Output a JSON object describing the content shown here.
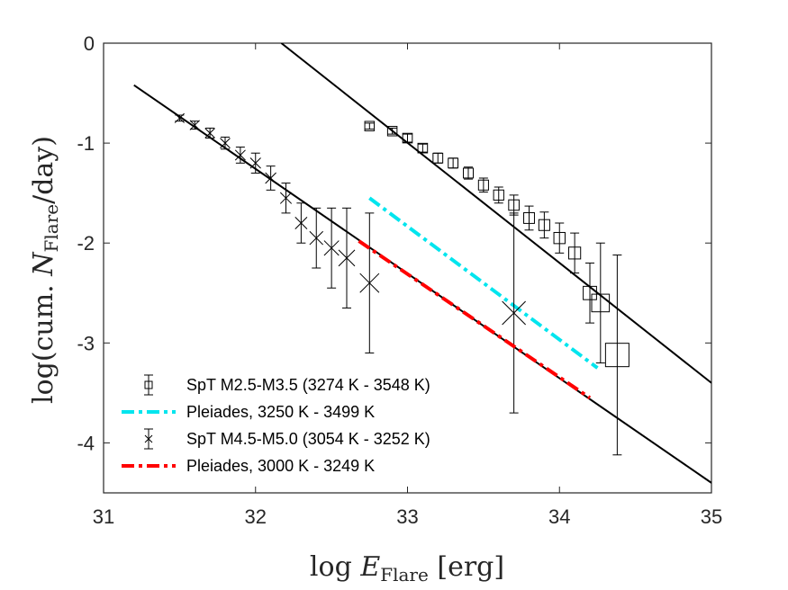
{
  "chart_data": {
    "type": "scatter",
    "xlabel": "log E_Flare [erg]",
    "ylabel": "log(cum. N_Flare/day)",
    "xlabel_parts": {
      "prefix": "log ",
      "symbol": "E",
      "subscript": "Flare",
      "suffix": " [erg]"
    },
    "ylabel_parts": {
      "prefix": "log(cum. ",
      "symbol": "N",
      "subscript": "Flare",
      "suffix": "/day)"
    },
    "xlim": [
      31,
      35
    ],
    "ylim": [
      -4.5,
      0
    ],
    "xticks": [
      31,
      32,
      33,
      34,
      35
    ],
    "xtick_labels": [
      "31",
      "32",
      "33",
      "34",
      "35"
    ],
    "yticks": [
      0,
      -1,
      -2,
      -3,
      -4
    ],
    "ytick_labels": [
      "0",
      "-1",
      "-2",
      "-3",
      "-4"
    ],
    "grid": false,
    "legend_position": "bottom-left",
    "fit_lines": [
      {
        "name": "fit-early",
        "x": [
          32.17,
          35.0
        ],
        "y": [
          0.0,
          -3.4
        ]
      },
      {
        "name": "fit-late",
        "x": [
          31.2,
          35.0
        ],
        "y": [
          -0.42,
          -4.4
        ]
      }
    ],
    "series": [
      {
        "name": "SpT M2.5-M3.5 (3274 K - 3548 K)",
        "marker": "square",
        "color": "#000000",
        "points": [
          {
            "x": 32.75,
            "y": -0.83,
            "err": 0.03
          },
          {
            "x": 32.9,
            "y": -0.88,
            "err": 0.03
          },
          {
            "x": 33.0,
            "y": -0.95,
            "err": 0.04
          },
          {
            "x": 33.1,
            "y": -1.05,
            "err": 0.04
          },
          {
            "x": 33.2,
            "y": -1.15,
            "err": 0.05
          },
          {
            "x": 33.3,
            "y": -1.2,
            "err": 0.05
          },
          {
            "x": 33.4,
            "y": -1.3,
            "err": 0.06
          },
          {
            "x": 33.5,
            "y": -1.42,
            "err": 0.07
          },
          {
            "x": 33.6,
            "y": -1.52,
            "err": 0.08
          },
          {
            "x": 33.7,
            "y": -1.62,
            "err": 0.1
          },
          {
            "x": 33.8,
            "y": -1.75,
            "err": 0.12
          },
          {
            "x": 33.9,
            "y": -1.82,
            "err": 0.13
          },
          {
            "x": 34.0,
            "y": -1.95,
            "err": 0.15
          },
          {
            "x": 34.1,
            "y": -2.1,
            "err": 0.2
          },
          {
            "x": 34.2,
            "y": -2.5,
            "err": 0.3
          },
          {
            "x": 34.27,
            "y": -2.6,
            "err": 0.6
          },
          {
            "x": 34.38,
            "y": -3.12,
            "err": 1.0
          }
        ]
      },
      {
        "name": "Pleiades, 3250 K - 3499 K",
        "marker": "line",
        "color": "#00e5ee",
        "x": [
          32.75,
          34.25
        ],
        "y": [
          -1.55,
          -3.25
        ]
      },
      {
        "name": "SpT M4.5-M5.0 (3054 K - 3252 K)",
        "marker": "cross",
        "color": "#000000",
        "points": [
          {
            "x": 31.5,
            "y": -0.75,
            "err": 0.03
          },
          {
            "x": 31.6,
            "y": -0.82,
            "err": 0.04
          },
          {
            "x": 31.7,
            "y": -0.9,
            "err": 0.05
          },
          {
            "x": 31.8,
            "y": -1.0,
            "err": 0.06
          },
          {
            "x": 31.9,
            "y": -1.12,
            "err": 0.08
          },
          {
            "x": 32.0,
            "y": -1.2,
            "err": 0.1
          },
          {
            "x": 32.1,
            "y": -1.35,
            "err": 0.12
          },
          {
            "x": 32.2,
            "y": -1.55,
            "err": 0.15
          },
          {
            "x": 32.3,
            "y": -1.8,
            "err": 0.2
          },
          {
            "x": 32.4,
            "y": -1.95,
            "err": 0.3
          },
          {
            "x": 32.5,
            "y": -2.05,
            "err": 0.4
          },
          {
            "x": 32.6,
            "y": -2.15,
            "err": 0.5
          },
          {
            "x": 32.75,
            "y": -2.4,
            "err": 0.7
          },
          {
            "x": 33.7,
            "y": -2.7,
            "err": 1.0
          }
        ]
      },
      {
        "name": "Pleiades, 3000 K - 3249 K",
        "marker": "line",
        "color": "#ff0000",
        "x": [
          32.68,
          34.2
        ],
        "y": [
          -1.98,
          -3.55
        ]
      }
    ]
  }
}
